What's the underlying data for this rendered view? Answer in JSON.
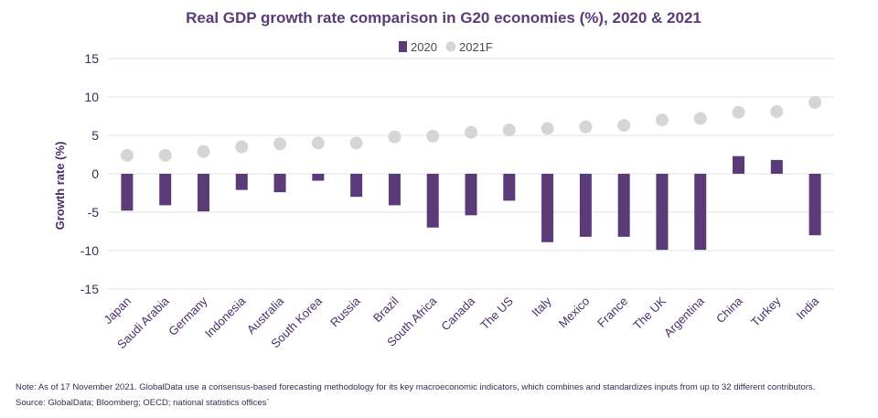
{
  "chart_data": {
    "type": "bar",
    "title": "Real GDP growth rate comparison in G20 economies (%), 2020 & 2021",
    "ylabel": "Growth rate (%)",
    "xlabel": "",
    "ylim": [
      -15,
      15
    ],
    "yticks": [
      15,
      10,
      5,
      0,
      -5,
      -10,
      -15
    ],
    "grid": true,
    "legend_position": "top-center",
    "categories": [
      "Japan",
      "Saudi Arabia",
      "Germany",
      "Indonesia",
      "Australia",
      "South Korea",
      "Russia",
      "Brazil",
      "South Africa",
      "Canada",
      "The US",
      "Italy",
      "Mexico",
      "France",
      "The UK",
      "Argentina",
      "China",
      "Turkey",
      "India"
    ],
    "series": [
      {
        "name": "2020",
        "mark": "bar",
        "color": "#5b3a78",
        "values": [
          -4.8,
          -4.1,
          -4.9,
          -2.1,
          -2.4,
          -0.9,
          -3.0,
          -4.1,
          -7.0,
          -5.4,
          -3.5,
          -8.9,
          -8.2,
          -8.2,
          -9.9,
          -9.9,
          2.3,
          1.8,
          -8.0
        ]
      },
      {
        "name": "2021F",
        "mark": "dot",
        "color": "#d5d5d5",
        "values": [
          2.4,
          2.4,
          2.9,
          3.5,
          3.9,
          4.0,
          4.0,
          4.8,
          4.9,
          5.4,
          5.7,
          5.9,
          6.1,
          6.3,
          7.0,
          7.2,
          8.0,
          8.1,
          9.3
        ]
      }
    ]
  },
  "footnote": {
    "note": "Note: As of 17 November 2021. GlobalData use a consensus-based forecasting methodology for its key macroeconomic indicators, which combines and standardizes inputs from up to 32 different contributors.",
    "source": "Source: GlobalData; Bloomberg; OECD; national statistics offices`"
  }
}
